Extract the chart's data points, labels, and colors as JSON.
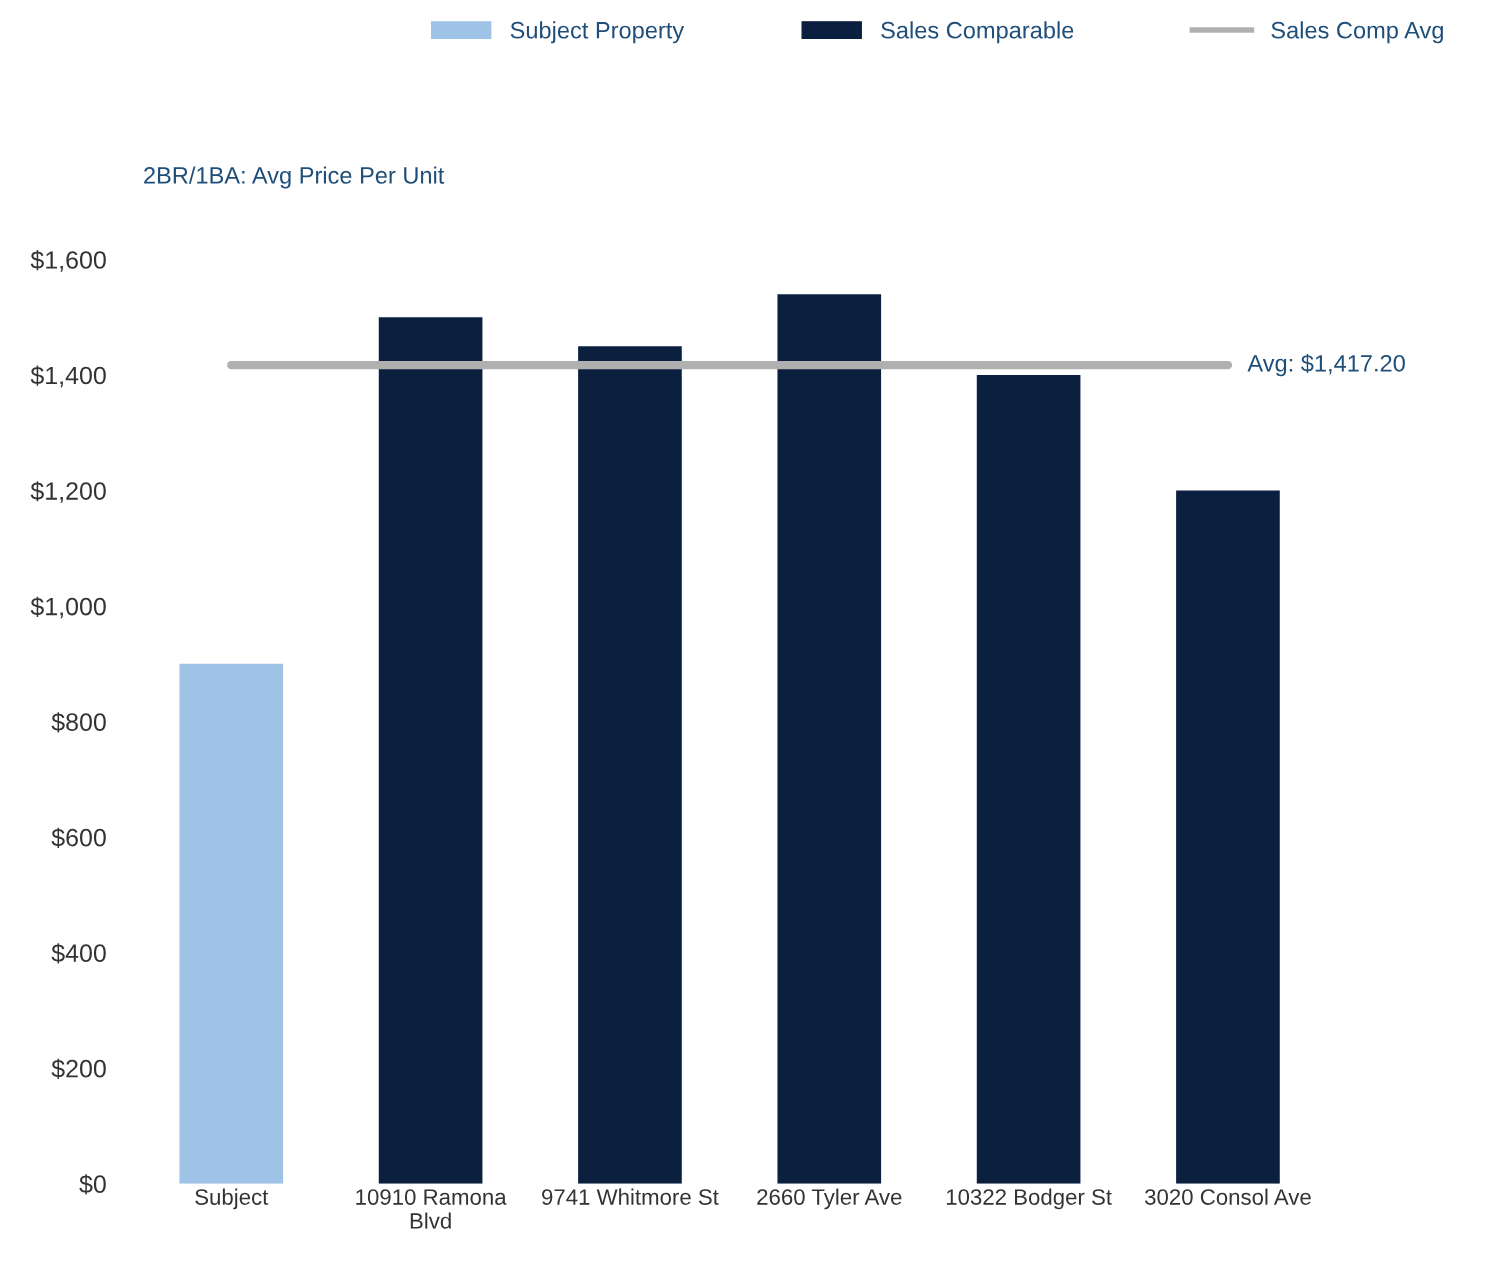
{
  "chart_data": {
    "type": "bar",
    "title": "2BR/1BA: Avg Price Per Unit",
    "categories": [
      "Subject",
      "10910 Ramona Blvd",
      "9741 Whitmore St",
      "2660 Tyler Ave",
      "10322 Bodger St",
      "3020 Consol Ave"
    ],
    "series": [
      {
        "name": "Subject Property",
        "color": "#9fc3e6",
        "values": [
          900,
          null,
          null,
          null,
          null,
          null
        ]
      },
      {
        "name": "Sales Comparable",
        "color": "#0b1f3f",
        "values": [
          null,
          1500,
          1450,
          1540,
          1400,
          1200
        ]
      },
      {
        "name": "Sales Comp Avg",
        "type": "line",
        "color": "#b0b0b0",
        "values": [
          1417.2,
          1417.2,
          1417.2,
          1417.2,
          1417.2,
          1417.2
        ]
      }
    ],
    "annotations": [
      {
        "text": "Avg: $1,417.20",
        "x": "3020 Consol Ave",
        "y": 1417.2
      }
    ],
    "ylim": [
      0,
      1600
    ],
    "yticks": [
      {
        "value": 0,
        "label": "$0"
      },
      {
        "value": 200,
        "label": "$200"
      },
      {
        "value": 400,
        "label": "$400"
      },
      {
        "value": 600,
        "label": "$600"
      },
      {
        "value": 800,
        "label": "$800"
      },
      {
        "value": 1000,
        "label": "$1,000"
      },
      {
        "value": 1200,
        "label": "$1,200"
      },
      {
        "value": 1400,
        "label": "$1,400"
      },
      {
        "value": 1600,
        "label": "$1,600"
      }
    ],
    "grid": false,
    "legend": "top"
  }
}
